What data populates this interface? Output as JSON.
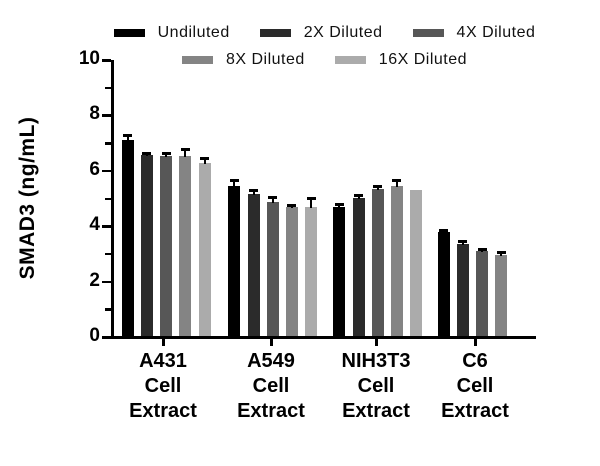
{
  "chart_data": {
    "type": "bar",
    "title": "",
    "ylabel": "SMAD3 (ng/mL)",
    "xlabel": "",
    "ylim": [
      0,
      10
    ],
    "yticks_major": [
      0,
      2,
      4,
      6,
      8,
      10
    ],
    "yticks_minor": [
      1,
      3,
      5,
      7,
      9
    ],
    "grid": false,
    "legend_position": "top",
    "legend_rows": [
      [
        "Undiluted",
        "2X Diluted",
        "4X Diluted"
      ],
      [
        "8X Diluted",
        "16X Diluted"
      ]
    ],
    "categories": [
      [
        "A431",
        "Cell",
        "Extract"
      ],
      [
        "A549",
        "Cell",
        "Extract"
      ],
      [
        "NIH3T3",
        "Cell",
        "Extract"
      ],
      [
        "C6",
        "Cell",
        "Extract"
      ]
    ],
    "series": [
      {
        "name": "Undiluted",
        "color": "#000000",
        "values": [
          7.1,
          5.45,
          4.71,
          3.78
        ],
        "errors": [
          0.2,
          0.23,
          0.09,
          0.09
        ]
      },
      {
        "name": "2X Diluted",
        "color": "#2b2b2b",
        "values": [
          6.58,
          5.16,
          5.02,
          3.37
        ],
        "errors": [
          0.08,
          0.16,
          0.1,
          0.1
        ]
      },
      {
        "name": "4X Diluted",
        "color": "#575757",
        "values": [
          6.55,
          4.89,
          5.34,
          3.09
        ],
        "errors": [
          0.09,
          0.15,
          0.12,
          0.09
        ]
      },
      {
        "name": "8X Diluted",
        "color": "#848484",
        "values": [
          6.52,
          4.69,
          5.46,
          2.97
        ],
        "errors": [
          0.27,
          0.08,
          0.22,
          0.09
        ]
      },
      {
        "name": "16X Diluted",
        "color": "#ababab",
        "values": [
          6.28,
          4.69,
          5.32,
          null
        ],
        "errors": [
          0.18,
          0.33,
          0,
          null
        ]
      }
    ],
    "colors": {
      "axis": "#000000",
      "background": "#ffffff"
    }
  }
}
